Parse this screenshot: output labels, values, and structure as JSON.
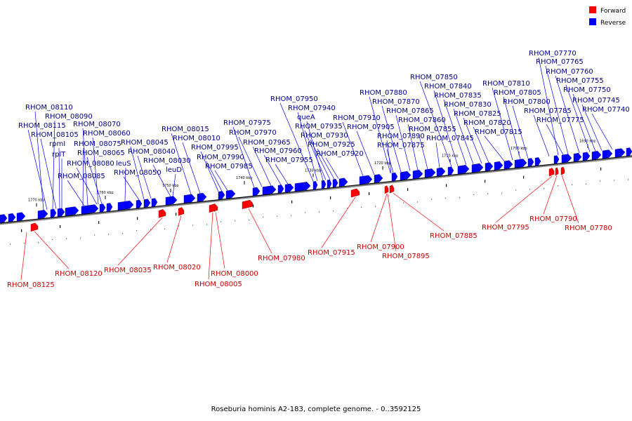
{
  "caption": "Roseburia hominis A2-183, complete genome. - 0..3592125",
  "legend": [
    {
      "label": "Forward",
      "color": "#ff0000"
    },
    {
      "label": "Reverse",
      "color": "#0000ff"
    }
  ],
  "colors": {
    "reverse": "#0000ff",
    "forward": "#ff0000",
    "reverse_label": "#00008b",
    "forward_label": "#cc0000"
  },
  "ticks": [
    "1770 kbp",
    "1760 kbp",
    "1750 kbp",
    "1740 kbp",
    "1730 kbp",
    "1720 kbp",
    "1710 kbp",
    "1700 kbp",
    "1690 kbp"
  ],
  "reverse_labels": [
    "RHOM_08110",
    "RHOM_08090",
    "RHOM_08115",
    "RHOM_08070",
    "RHOM_08105",
    "RHOM_08060",
    "rpmI",
    "RHOM_08075",
    "rplT",
    "RHOM_08065",
    "RHOM_08080",
    "RHOM_08085",
    "RHOM_08045",
    "RHOM_08040",
    "leuS",
    "RHOM_08050",
    "RHOM_08030",
    "leuD",
    "RHOM_08015",
    "RHOM_08010",
    "RHOM_07995",
    "RHOM_07990",
    "RHOM_07985",
    "RHOM_07975",
    "RHOM_07970",
    "RHOM_07965",
    "RHOM_07960",
    "RHOM_07955",
    "RHOM_07950",
    "RHOM_07940",
    "queA",
    "RHOM_07935",
    "RHOM_07930",
    "RHOM_07925",
    "RHOM_07920",
    "RHOM_07910",
    "RHOM_07905",
    "RHOM_07890",
    "RHOM_07875",
    "RHOM_07880",
    "RHOM_07870",
    "RHOM_07865",
    "RHOM_07860",
    "RHOM_07855",
    "RHOM_07845",
    "RHOM_07850",
    "RHOM_07840",
    "RHOM_07835",
    "RHOM_07830",
    "RHOM_07825",
    "RHOM_07820",
    "RHOM_07815",
    "RHOM_07810",
    "RHOM_07805",
    "RHOM_07800",
    "RHOM_07785",
    "RHOM_07775",
    "RHOM_07770",
    "RHOM_07765",
    "RHOM_07760",
    "RHOM_07755",
    "RHOM_07750",
    "RHOM_07745",
    "RHOM_07740"
  ],
  "forward_labels": [
    "RHOM_08125",
    "RHOM_08120",
    "RHOM_08035",
    "RHOM_08020",
    "RHOM_08005",
    "RHOM_08000",
    "RHOM_07980",
    "RHOM_07915",
    "RHOM_07900",
    "RHOM_07895",
    "RHOM_07885",
    "RHOM_07795",
    "RHOM_07790",
    "RHOM_07780"
  ]
}
